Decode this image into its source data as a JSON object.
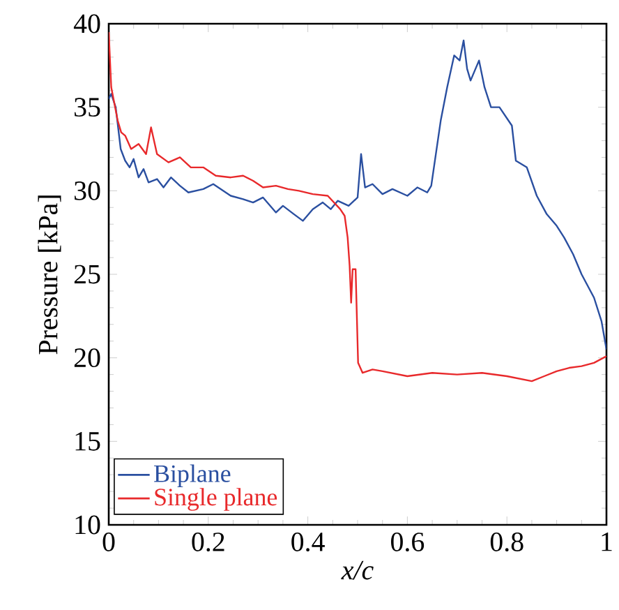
{
  "chart_data": {
    "type": "line",
    "xlabel": "x/c",
    "ylabel": "Pressure [kPa]",
    "xlim": [
      0,
      1
    ],
    "ylim": [
      10,
      40
    ],
    "xticks": [
      0,
      0.2,
      0.4,
      0.6,
      0.8,
      1
    ],
    "yticks": [
      10,
      15,
      20,
      25,
      30,
      35,
      40
    ],
    "grid": false,
    "legend": "bottom left",
    "marker": "none",
    "line_style": "solid",
    "series": [
      {
        "name": "Biplane",
        "color": "#2a4fa0",
        "x": [
          0,
          0.005,
          0.014,
          0.024,
          0.033,
          0.042,
          0.05,
          0.06,
          0.07,
          0.08,
          0.097,
          0.11,
          0.125,
          0.143,
          0.16,
          0.19,
          0.21,
          0.245,
          0.27,
          0.29,
          0.31,
          0.336,
          0.35,
          0.372,
          0.39,
          0.41,
          0.43,
          0.446,
          0.46,
          0.482,
          0.5,
          0.507,
          0.515,
          0.53,
          0.55,
          0.57,
          0.6,
          0.62,
          0.64,
          0.648,
          0.667,
          0.68,
          0.694,
          0.705,
          0.713,
          0.72,
          0.727,
          0.744,
          0.755,
          0.768,
          0.785,
          0.81,
          0.818,
          0.84,
          0.86,
          0.88,
          0.9,
          0.915,
          0.933,
          0.95,
          0.975,
          0.99,
          1
        ],
        "values": [
          35.5,
          35.8,
          35,
          32.5,
          31.8,
          31.4,
          31.9,
          30.8,
          31.3,
          30.5,
          30.7,
          30.2,
          30.8,
          30.3,
          29.9,
          30.1,
          30.4,
          29.7,
          29.5,
          29.3,
          29.6,
          28.7,
          29.1,
          28.6,
          28.2,
          28.9,
          29.3,
          28.9,
          29.4,
          29.1,
          29.6,
          32.2,
          30.2,
          30.4,
          29.8,
          30.1,
          29.7,
          30.2,
          29.9,
          30.3,
          34.2,
          36.2,
          38.1,
          37.8,
          39,
          37.3,
          36.6,
          37.8,
          36.2,
          35,
          35,
          33.9,
          31.8,
          31.4,
          29.7,
          28.6,
          27.9,
          27.2,
          26.2,
          25,
          23.6,
          22.2,
          20.5
        ]
      },
      {
        "name": "Single plane",
        "color": "#e8292b",
        "x": [
          0,
          0.005,
          0.018,
          0.025,
          0.033,
          0.045,
          0.06,
          0.075,
          0.085,
          0.097,
          0.12,
          0.143,
          0.165,
          0.19,
          0.215,
          0.245,
          0.27,
          0.29,
          0.31,
          0.336,
          0.36,
          0.382,
          0.41,
          0.44,
          0.465,
          0.474,
          0.48,
          0.484,
          0.487,
          0.49,
          0.496,
          0.501,
          0.51,
          0.53,
          0.55,
          0.6,
          0.65,
          0.7,
          0.75,
          0.8,
          0.85,
          0.875,
          0.9,
          0.925,
          0.95,
          0.975,
          1
        ],
        "values": [
          39.5,
          36.2,
          34.2,
          33.5,
          33.3,
          32.5,
          32.8,
          32.2,
          33.8,
          32.2,
          31.7,
          32,
          31.4,
          31.4,
          30.9,
          30.8,
          30.9,
          30.6,
          30.2,
          30.3,
          30.1,
          30,
          29.8,
          29.7,
          28.9,
          28.5,
          27.2,
          25.5,
          23.3,
          25.3,
          25.3,
          19.7,
          19.1,
          19.3,
          19.2,
          18.9,
          19.1,
          19,
          19.1,
          18.9,
          18.6,
          18.9,
          19.2,
          19.4,
          19.5,
          19.7,
          20.1
        ]
      }
    ]
  }
}
